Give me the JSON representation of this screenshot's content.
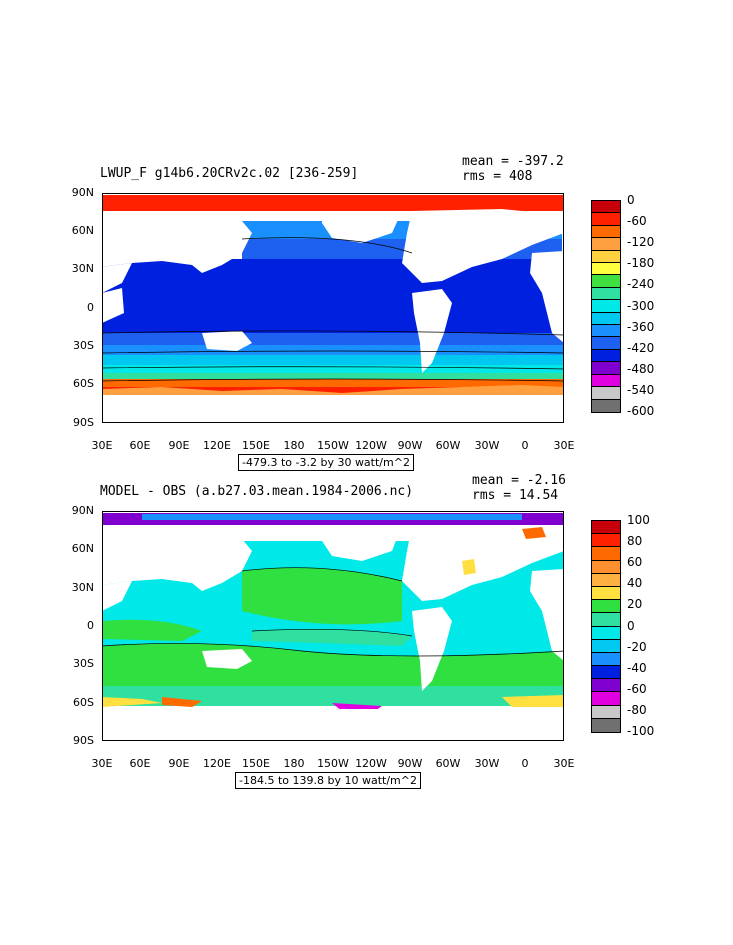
{
  "panels": [
    {
      "title": "LWUP_F g14b6.20CRv2c.02 [236-259]",
      "mean": "mean = -397.2",
      "rms": "rms = 408",
      "range": "-479.3 to -3.2 by 30 watt/m^2",
      "colorbar_labels": [
        "0",
        "-60",
        "-120",
        "-180",
        "-240",
        "-300",
        "-360",
        "-420",
        "-480",
        "-540",
        "-600"
      ],
      "colorbar_colors": [
        "#c8000a",
        "#ff2000",
        "#ff6a00",
        "#ffa040",
        "#ffd040",
        "#ffff40",
        "#40e040",
        "#30e0a0",
        "#00e8e8",
        "#00c8f0",
        "#1a90ff",
        "#1e60f0",
        "#0020e0",
        "#8000d0",
        "#e000e0",
        "#c8c8c8",
        "#707070"
      ]
    },
    {
      "title": "MODEL - OBS (a.b27.03.mean.1984-2006.nc)",
      "mean": "mean = -2.16",
      "rms": "rms = 14.54",
      "range": "-184.5 to 139.8 by 10 watt/m^2",
      "colorbar_labels": [
        "100",
        "80",
        "60",
        "40",
        "20",
        "0",
        "-20",
        "-40",
        "-60",
        "-80",
        "-100"
      ],
      "colorbar_colors": [
        "#c8000a",
        "#ff2000",
        "#ff6a00",
        "#ff9030",
        "#ffb040",
        "#ffe040",
        "#30e040",
        "#30e0a0",
        "#00e8e8",
        "#00c8f0",
        "#1a90ff",
        "#0020e0",
        "#8000d0",
        "#e000e0",
        "#c8c8c8",
        "#707070"
      ]
    }
  ],
  "lat_labels": [
    "90N",
    "60N",
    "30N",
    "0",
    "30S",
    "60S",
    "90S"
  ],
  "lon_labels": [
    "30E",
    "60E",
    "90E",
    "120E",
    "150E",
    "180",
    "150W",
    "120W",
    "90W",
    "60W",
    "30W",
    "0",
    "30E"
  ]
}
